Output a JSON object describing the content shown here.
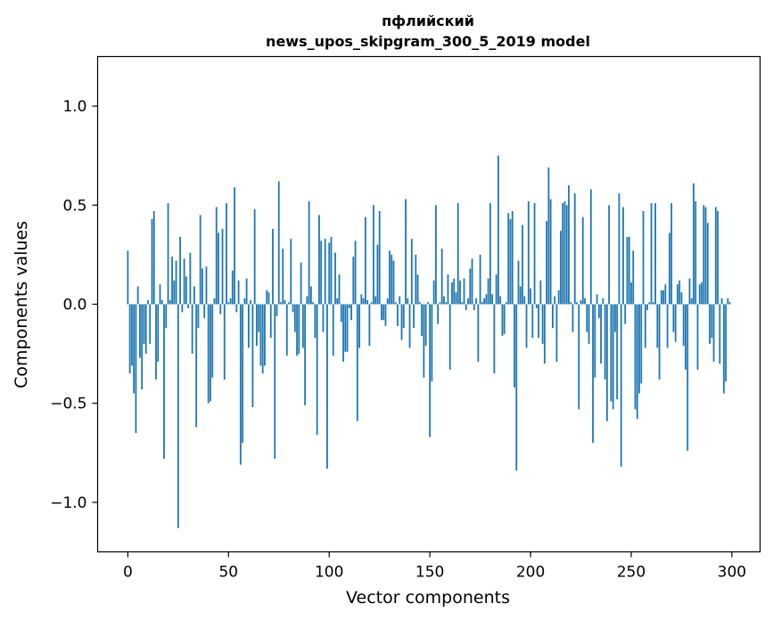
{
  "chart_data": {
    "type": "bar",
    "title_line1": "пфлийский",
    "title_line2": "news_upos_skipgram_300_5_2019 model",
    "xlabel": "Vector components",
    "ylabel": "Components values",
    "xlim": [
      -15,
      314
    ],
    "ylim": [
      -1.25,
      1.25
    ],
    "x_ticks": [
      0,
      50,
      100,
      150,
      200,
      250,
      300
    ],
    "x_tick_labels": [
      "0",
      "50",
      "100",
      "150",
      "200",
      "250",
      "300"
    ],
    "y_ticks": [
      -1.0,
      -0.5,
      0.0,
      0.5,
      1.0
    ],
    "y_tick_labels": [
      "−1.0",
      "−0.5",
      "0.0",
      "0.5",
      "1.0"
    ],
    "bar_color": "#1f77b4",
    "grid": false,
    "legend": "none",
    "series": [
      {
        "values": [
          0.27,
          -0.35,
          -0.31,
          -0.45,
          -0.65,
          0.09,
          -0.27,
          -0.43,
          -0.2,
          -0.25,
          0.02,
          -0.2,
          0.43,
          0.47,
          -0.38,
          -0.29,
          0.1,
          0.02,
          -0.78,
          -0.12,
          0.51,
          0.02,
          0.24,
          0.12,
          0.22,
          -1.13,
          0.34,
          -0.04,
          0.23,
          0.14,
          -0.02,
          0.26,
          -0.25,
          0.09,
          -0.62,
          -0.12,
          0.45,
          0.18,
          -0.07,
          0.19,
          -0.5,
          -0.49,
          -0.37,
          0.03,
          0.49,
          0.36,
          -0.05,
          0.38,
          -0.38,
          0.51,
          0.01,
          0.03,
          0.17,
          0.59,
          -0.04,
          0.12,
          -0.81,
          -0.7,
          0.03,
          0.13,
          -0.22,
          0.02,
          -0.52,
          0.48,
          -0.21,
          -0.14,
          -0.31,
          -0.35,
          -0.31,
          0.07,
          0.06,
          -0.17,
          0.38,
          -0.78,
          -0.06,
          0.62,
          0.01,
          0.28,
          0.02,
          -0.26,
          0.01,
          0.33,
          -0.04,
          -0.14,
          -0.26,
          -0.25,
          0.21,
          -0.22,
          -0.51,
          0.04,
          0.52,
          0.09,
          0.01,
          -0.17,
          -0.66,
          0.45,
          0.32,
          -0.14,
          0.33,
          -0.83,
          0.31,
          0.34,
          -0.26,
          0.26,
          0.03,
          0.15,
          -0.09,
          -0.29,
          -0.24,
          -0.24,
          -0.02,
          -0.08,
          0.24,
          0.32,
          -0.59,
          -0.22,
          0.05,
          0.03,
          0.44,
          0.02,
          -0.21,
          0.01,
          0.5,
          0.04,
          0.3,
          0.47,
          -0.08,
          -0.08,
          -0.11,
          0.03,
          0.27,
          0.25,
          0.22,
          0.01,
          -0.11,
          0.04,
          -0.18,
          -0.12,
          0.53,
          0.03,
          -0.22,
          0.33,
          -0.12,
          0.25,
          0.15,
          0.01,
          -0.16,
          -0.37,
          -0.21,
          0.01,
          -0.67,
          -0.39,
          0.12,
          0.5,
          -0.1,
          0.01,
          0.28,
          0.04,
          0.01,
          0.15,
          -0.33,
          0.11,
          0.13,
          0.06,
          0.51,
          0.12,
          0.01,
          0.13,
          -0.03,
          0.03,
          0.18,
          0.23,
          -0.03,
          0.03,
          -0.29,
          0.25,
          0.01,
          0.03,
          0.05,
          0.13,
          0.51,
          0.05,
          -0.35,
          0.15,
          0.75,
          0.04,
          -0.16,
          -0.15,
          0.01,
          0.46,
          0.43,
          0.47,
          -0.42,
          -0.84,
          0.22,
          0.09,
          0.4,
          0.04,
          -0.22,
          0.52,
          0.08,
          -0.17,
          0.51,
          -0.02,
          -0.17,
          0.12,
          -0.2,
          -0.3,
          0.42,
          0.69,
          0.53,
          -0.12,
          0.04,
          -0.29,
          0.07,
          0.37,
          0.51,
          0.52,
          0.5,
          0.6,
          0.01,
          -0.14,
          0.56,
          0.01,
          -0.53,
          0.02,
          0.44,
          0.03,
          -0.14,
          -0.2,
          0.58,
          -0.7,
          -0.37,
          0.05,
          -0.07,
          -0.3,
          0.03,
          -0.38,
          -0.59,
          0.5,
          -0.49,
          -0.53,
          -0.14,
          -0.48,
          0.56,
          -0.82,
          0.49,
          -0.1,
          0.34,
          0.34,
          0.11,
          0.27,
          -0.53,
          -0.58,
          -0.45,
          -0.4,
          0.47,
          -0.22,
          -0.03,
          0.01,
          0.51,
          0.01,
          0.51,
          -0.22,
          -0.38,
          0.07,
          0.07,
          0.1,
          -0.22,
          0.36,
          0.51,
          -0.14,
          -0.19,
          0.1,
          0.12,
          0.06,
          -0.21,
          -0.33,
          -0.74,
          0.13,
          0.03,
          0.61,
          0.52,
          -0.33,
          0.1,
          0.11,
          0.5,
          0.49,
          0.41,
          -0.2,
          -0.17,
          -0.29,
          0.49,
          0.47,
          -0.3,
          0.03,
          -0.45,
          -0.39,
          0.03,
          0.01
        ]
      }
    ]
  }
}
